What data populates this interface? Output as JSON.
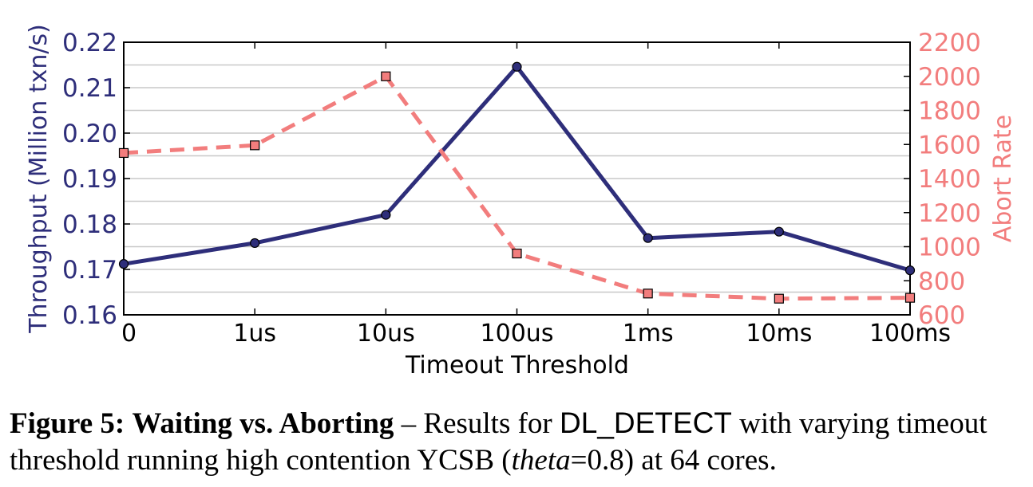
{
  "chart_data": {
    "type": "line",
    "categories": [
      "0",
      "1us",
      "10us",
      "100us",
      "1ms",
      "10ms",
      "100ms"
    ],
    "xlabel": "Timeout Threshold",
    "ylabel": "Throughput (Million txn/s)",
    "y2label": "Abort Rate",
    "ylim": [
      0.16,
      0.22
    ],
    "y2lim": [
      600,
      2200
    ],
    "yticks": [
      "0.16",
      "0.17",
      "0.18",
      "0.19",
      "0.20",
      "0.21",
      "0.22"
    ],
    "y2ticks": [
      "600",
      "800",
      "1000",
      "1200",
      "1400",
      "1600",
      "1800",
      "2000",
      "2200"
    ],
    "grid": true,
    "series": [
      {
        "name": "Throughput",
        "axis": "left",
        "style": "solid-circle",
        "color": "#2e2e7a",
        "values": [
          0.1712,
          0.1758,
          0.182,
          0.2146,
          0.1769,
          0.1783,
          0.1698
        ]
      },
      {
        "name": "Abort Rate",
        "axis": "right",
        "style": "dashed-square",
        "color": "#f27d7d",
        "values": [
          1550,
          1595,
          2000,
          960,
          725,
          695,
          700
        ]
      }
    ]
  },
  "caption": {
    "fig_label": "Figure 5:",
    "fig_title": "Waiting vs. Aborting",
    "text_1": "– Results for ",
    "algo": "DL_DETECT",
    "text_2": " with varying timeout threshold running high contention YCSB (",
    "param": "theta",
    "text_3": "=0.8) at 64 cores."
  }
}
